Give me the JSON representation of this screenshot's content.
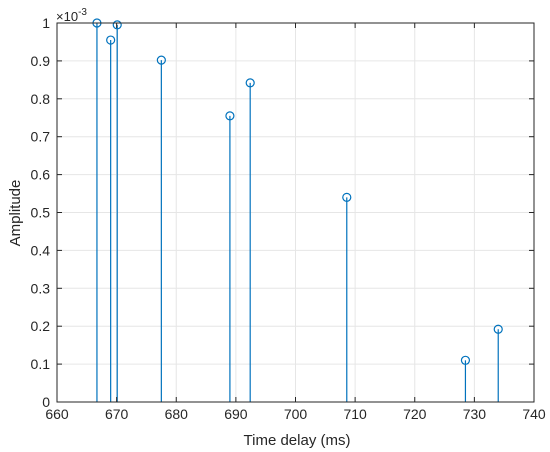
{
  "chart_data": {
    "type": "stem",
    "xlabel": "Time delay (ms)",
    "ylabel": "Amplitude",
    "xlim": [
      660,
      740
    ],
    "ylim": [
      0,
      1
    ],
    "y_multiplier": "×10",
    "y_multiplier_exponent": "-3",
    "xticks": [
      "660",
      "670",
      "680",
      "690",
      "700",
      "710",
      "720",
      "730",
      "740"
    ],
    "yticks": [
      "0",
      "0.1",
      "0.2",
      "0.3",
      "0.4",
      "0.5",
      "0.6",
      "0.7",
      "0.8",
      "0.9",
      "1"
    ],
    "grid": true,
    "series": [
      {
        "color": "#0072BD",
        "x": [
          666.7,
          669.0,
          670.1,
          677.5,
          689.0,
          692.4,
          708.6,
          728.5,
          734.0
        ],
        "y": [
          1.0,
          0.955,
          0.995,
          0.902,
          0.755,
          0.842,
          0.54,
          0.11,
          0.192
        ]
      }
    ]
  }
}
